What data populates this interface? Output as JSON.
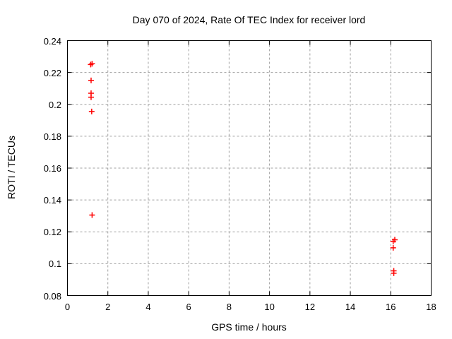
{
  "chart_data": {
    "type": "scatter",
    "title": "Day 070 of 2024, Rate Of TEC Index for receiver lord",
    "xlabel": "GPS time / hours",
    "ylabel": "ROTI / TECUs",
    "xlim": [
      0,
      18
    ],
    "ylim": [
      0.08,
      0.24
    ],
    "xticks": [
      0,
      2,
      4,
      6,
      8,
      10,
      12,
      14,
      16,
      18
    ],
    "xtick_labels": [
      "0",
      "2",
      "4",
      "6",
      "8",
      "10",
      "12",
      "14",
      "16",
      "18"
    ],
    "yticks": [
      0.08,
      0.1,
      0.12,
      0.14,
      0.16,
      0.18,
      0.2,
      0.22,
      0.24
    ],
    "ytick_labels": [
      "0.08",
      "0.1",
      "0.12",
      "0.14",
      "0.16",
      "0.18",
      "0.2",
      "0.22",
      "0.24"
    ],
    "grid": true,
    "legend_position": "none",
    "marker": {
      "symbol": "plus",
      "color": "#ff0000",
      "size": 9
    },
    "series": [
      {
        "name": "ROTI",
        "points": [
          {
            "x": 1.15,
            "y": 0.225
          },
          {
            "x": 1.22,
            "y": 0.2255
          },
          {
            "x": 1.17,
            "y": 0.215
          },
          {
            "x": 1.17,
            "y": 0.207
          },
          {
            "x": 1.17,
            "y": 0.2045
          },
          {
            "x": 1.2,
            "y": 0.1955
          },
          {
            "x": 1.22,
            "y": 0.1305
          },
          {
            "x": 16.12,
            "y": 0.114
          },
          {
            "x": 16.2,
            "y": 0.115
          },
          {
            "x": 16.12,
            "y": 0.11
          },
          {
            "x": 16.15,
            "y": 0.0955
          },
          {
            "x": 16.15,
            "y": 0.094
          }
        ]
      }
    ]
  },
  "colors": {
    "background": "#ffffff",
    "axis": "#000000",
    "grid": "#a0a0a0",
    "text": "#000000",
    "marker": "#ff0000"
  }
}
